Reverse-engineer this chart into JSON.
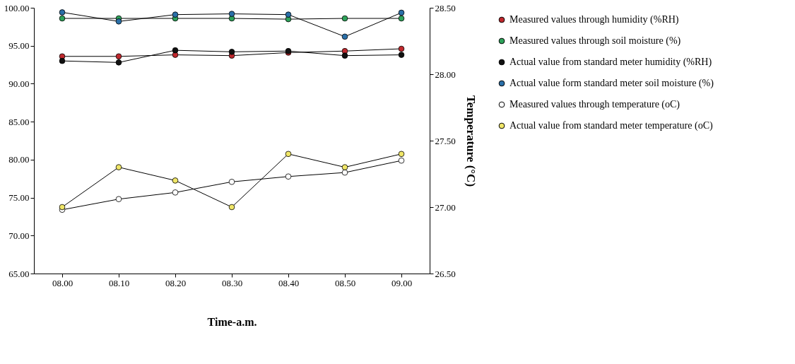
{
  "chart_data": {
    "type": "line",
    "xlabel": "Time-a.m.",
    "y2label": "Temperature (°C)",
    "categories": [
      "08.00",
      "08.10",
      "08.20",
      "08.30",
      "08.40",
      "08.50",
      "09.00"
    ],
    "series": [
      {
        "name": "Measured values through humidity (%RH)",
        "color": "#c0282d",
        "values": [
          93.6,
          93.6,
          93.8,
          93.7,
          94.1,
          94.3,
          94.6
        ]
      },
      {
        "name": "Measured values through soil moisture (%)",
        "color": "#2ea35a",
        "values": [
          98.6,
          98.6,
          98.6,
          98.6,
          98.5,
          98.6,
          98.6
        ]
      },
      {
        "name": "Actual value from standard meter humidity (%RH)",
        "color": "#111111",
        "values": [
          93.0,
          92.8,
          94.4,
          94.2,
          94.3,
          93.7,
          93.8
        ]
      },
      {
        "name": "Actual value form standard meter soil moisture (%)",
        "color": "#2a6fa8",
        "values": [
          99.4,
          98.2,
          99.1,
          99.2,
          99.1,
          96.2,
          99.35
        ]
      },
      {
        "name": "Measured values through temperature (oC)",
        "color": "#ffffff",
        "axis": "y2",
        "values": [
          26.98,
          27.06,
          27.11,
          27.19,
          27.23,
          27.26,
          27.35
        ]
      },
      {
        "name": "Actual value from standard meter temperature (oC)",
        "color": "#f0e668",
        "axis": "y2",
        "values": [
          27.0,
          27.3,
          27.2,
          27.0,
          27.4,
          27.3,
          27.4
        ]
      }
    ],
    "ylim": [
      65,
      100
    ],
    "yticks": [
      {
        "value": 65,
        "label": "65.00"
      },
      {
        "value": 70,
        "label": "70.00"
      },
      {
        "value": 75,
        "label": "75.00"
      },
      {
        "value": 80,
        "label": "80.00"
      },
      {
        "value": 85,
        "label": "85.00"
      },
      {
        "value": 90,
        "label": "90.00"
      },
      {
        "value": 95,
        "label": "95.00"
      },
      {
        "value": 100,
        "label": "100.00"
      }
    ],
    "y2lim": [
      26.5,
      28.5
    ],
    "y2ticks": [
      {
        "value": 26.5,
        "label": "26.50"
      },
      {
        "value": 27,
        "label": "27.00"
      },
      {
        "value": 27.5,
        "label": "27.50"
      },
      {
        "value": 28,
        "label": "28.00"
      },
      {
        "value": 28.5,
        "label": "28.50"
      }
    ],
    "marker": "circle",
    "line_style": "solid",
    "grid": false,
    "legend": "right"
  }
}
